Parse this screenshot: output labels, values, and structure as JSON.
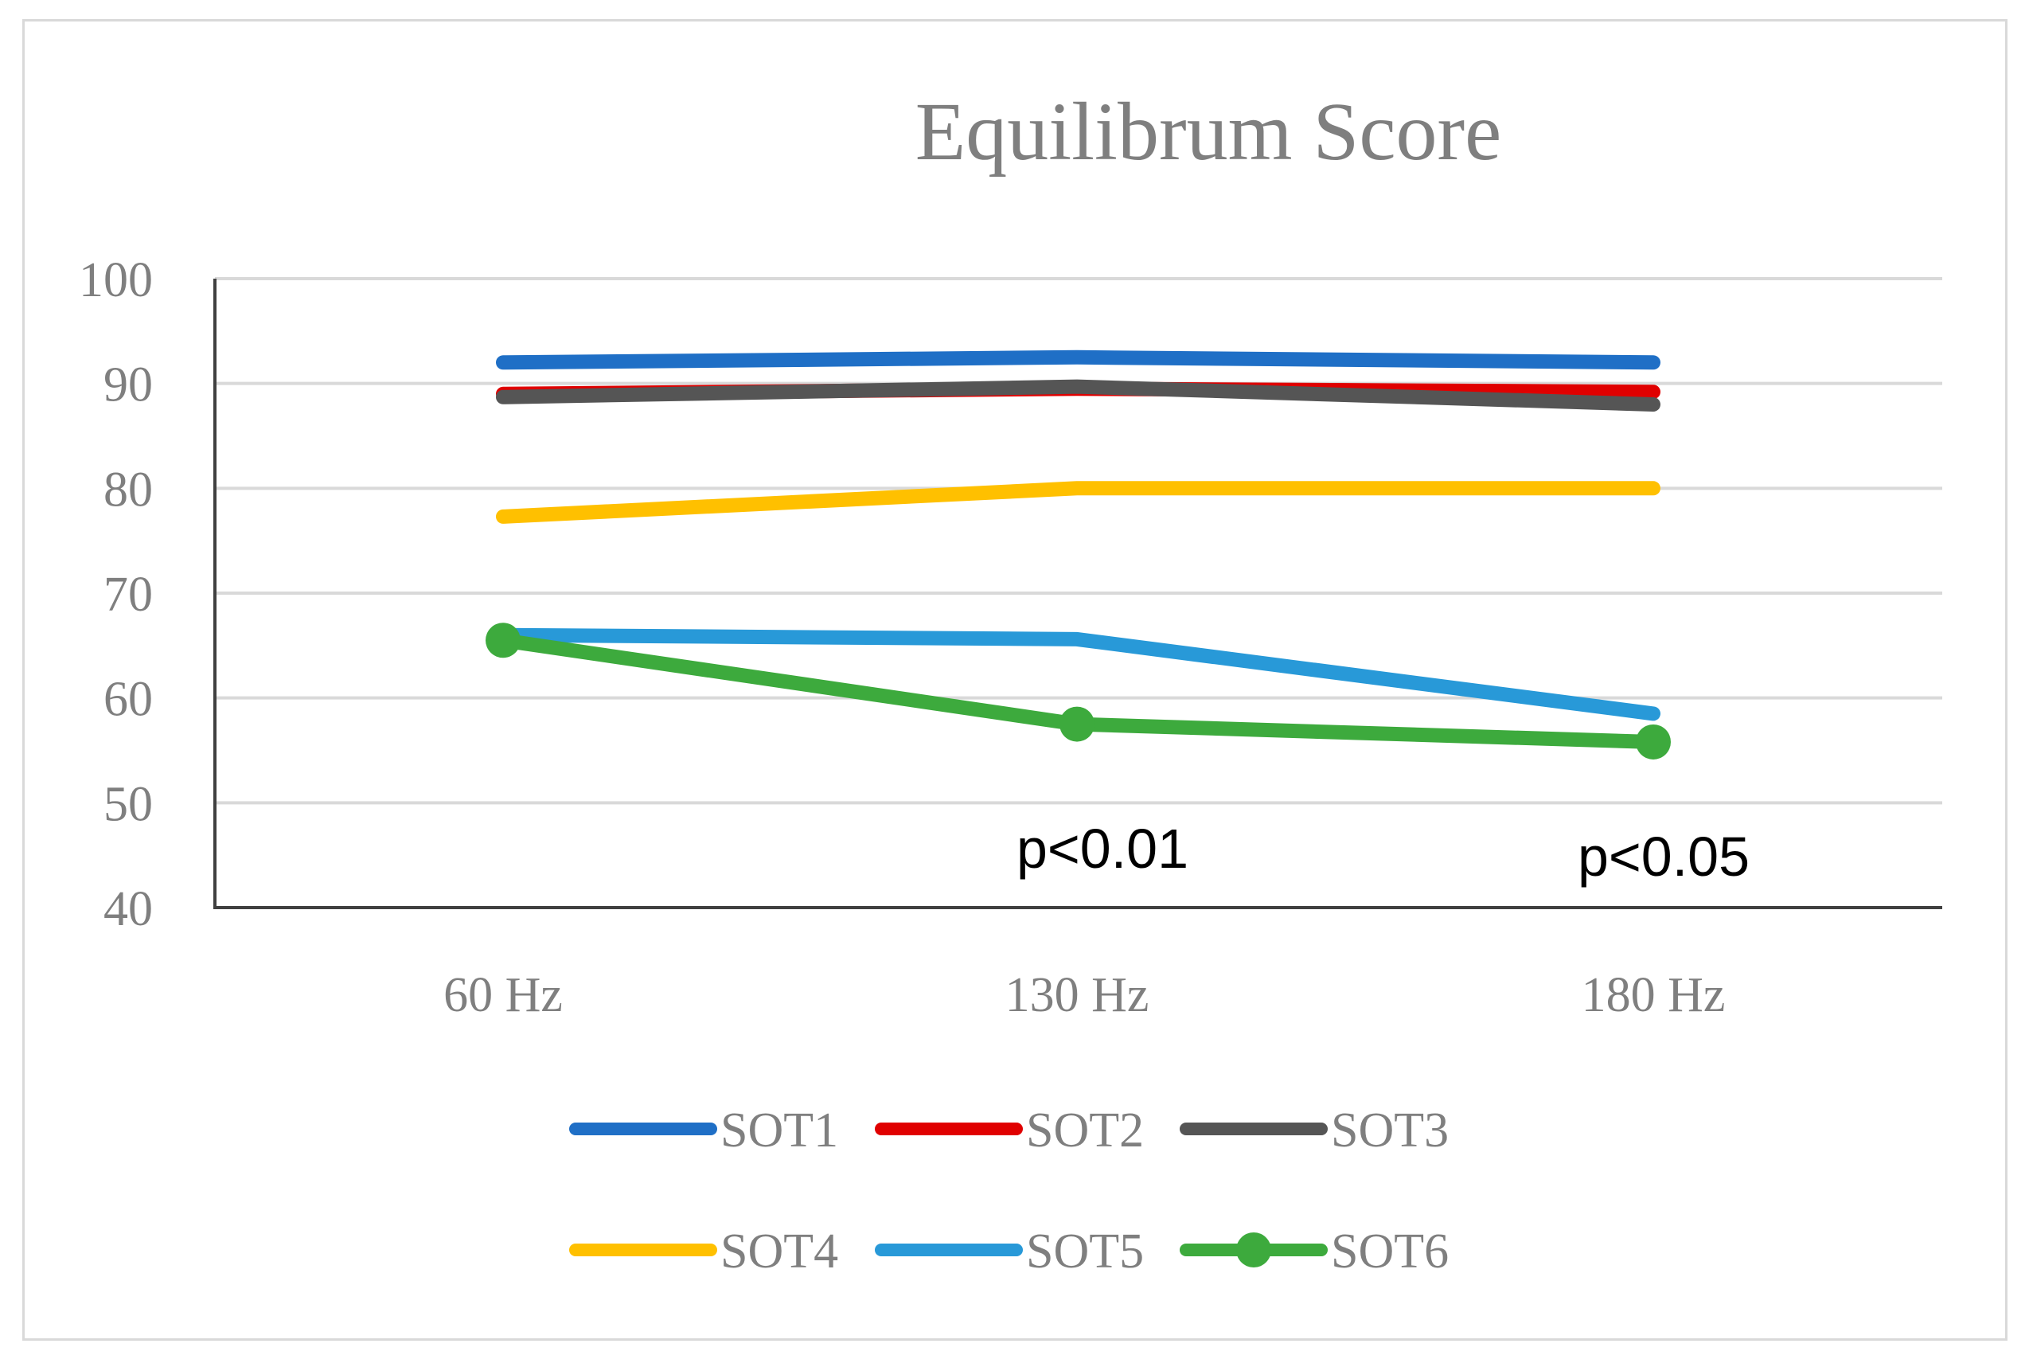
{
  "chart_data": {
    "type": "line",
    "title": "Equilibrum Score",
    "xlabel": "",
    "ylabel": "",
    "categories": [
      "60 Hz",
      "130 Hz",
      "180 Hz"
    ],
    "ylim": [
      40,
      100
    ],
    "yticks": [
      "100",
      "90",
      "80",
      "70",
      "60",
      "50",
      "40"
    ],
    "grid": true,
    "legend_position": "bottom",
    "series": [
      {
        "name": "SOT1",
        "values": [
          92,
          92.5,
          92
        ],
        "color": "#1f6fc6",
        "markers": false
      },
      {
        "name": "SOT2",
        "values": [
          89,
          89.5,
          89.2
        ],
        "color": "#e00000",
        "markers": false
      },
      {
        "name": "SOT3",
        "values": [
          88.7,
          89.7,
          88
        ],
        "color": "#555555",
        "markers": false
      },
      {
        "name": "SOT4",
        "values": [
          77.3,
          80,
          80
        ],
        "color": "#ffc000",
        "markers": false
      },
      {
        "name": "SOT5",
        "values": [
          66,
          65.6,
          58.5
        ],
        "color": "#2899d8",
        "markers": false
      },
      {
        "name": "SOT6",
        "values": [
          65.5,
          57.5,
          55.8
        ],
        "color": "#3daa3d",
        "markers": true
      }
    ],
    "annotations": [
      {
        "text": "p<0.01",
        "category": "130 Hz"
      },
      {
        "text": "p<0.05",
        "category": "180 Hz"
      }
    ]
  }
}
